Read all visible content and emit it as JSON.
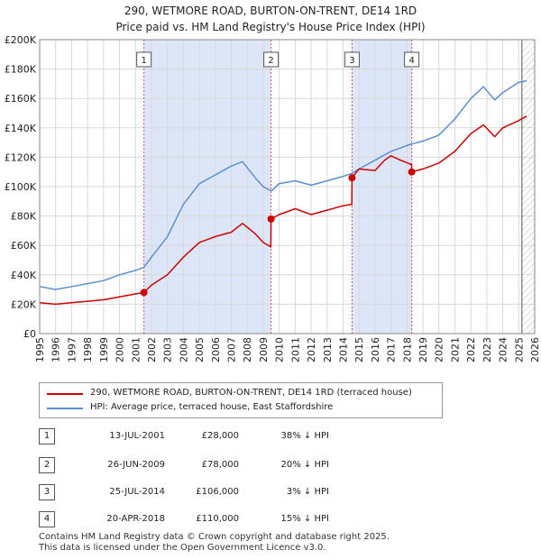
{
  "chart_data": {
    "type": "line",
    "title": "290, WETMORE ROAD, BURTON-ON-TRENT, DE14 1RD",
    "subtitle": "Price paid vs. HM Land Registry's House Price Index (HPI)",
    "xlim": [
      1995,
      2026
    ],
    "ylim": [
      0,
      200000
    ],
    "y_ticks": [
      0,
      20000,
      40000,
      60000,
      80000,
      100000,
      120000,
      140000,
      160000,
      180000,
      200000
    ],
    "y_tick_labels": [
      "£0",
      "£20K",
      "£40K",
      "£60K",
      "£80K",
      "£100K",
      "£120K",
      "£140K",
      "£160K",
      "£180K",
      "£200K"
    ],
    "x_ticks": [
      1995,
      1996,
      1997,
      1998,
      1999,
      2000,
      2001,
      2002,
      2003,
      2004,
      2005,
      2006,
      2007,
      2008,
      2009,
      2010,
      2011,
      2012,
      2013,
      2014,
      2015,
      2016,
      2017,
      2018,
      2019,
      2020,
      2021,
      2022,
      2023,
      2024,
      2025,
      2026
    ],
    "grid": true,
    "shaded_periods": [
      [
        2001.53,
        2009.49
      ],
      [
        2014.56,
        2018.3
      ]
    ],
    "forecast_start": 2025.2,
    "colors": {
      "property": "#cc0000",
      "hpi": "#5b8fd0",
      "shade": "#dde6f8",
      "grid": "#d8d8d8",
      "vline": "#e05050"
    },
    "series": [
      {
        "name": "290, WETMORE ROAD, BURTON-ON-TRENT, DE14 1RD (terraced house)",
        "color": "#cc0000",
        "x": [
          1995.0,
          1996.0,
          1997.0,
          1998.0,
          1999.0,
          2000.0,
          2001.0,
          2001.53,
          2002.0,
          2003.0,
          2004.0,
          2005.0,
          2006.0,
          2007.0,
          2007.7,
          2008.5,
          2009.0,
          2009.48,
          2009.49,
          2010.0,
          2011.0,
          2012.0,
          2013.0,
          2014.0,
          2014.55,
          2014.56,
          2015.0,
          2016.0,
          2016.6,
          2017.0,
          2017.6,
          2018.29,
          2018.3,
          2019.0,
          2020.0,
          2021.0,
          2022.0,
          2022.8,
          2023.5,
          2024.0,
          2025.0,
          2025.5
        ],
        "values": [
          21000,
          20000,
          21000,
          22000,
          23000,
          25000,
          27000,
          28000,
          33000,
          40000,
          52000,
          62000,
          66000,
          69000,
          75000,
          68000,
          62000,
          59000,
          78000,
          81000,
          85000,
          81000,
          84000,
          87000,
          88000,
          106000,
          112000,
          111000,
          118000,
          121000,
          118000,
          115000,
          110000,
          112000,
          116000,
          124000,
          136000,
          142000,
          134000,
          140000,
          145000,
          148000
        ]
      },
      {
        "name": "HPI: Average price, terraced house, East Staffordshire",
        "color": "#5b8fd0",
        "x": [
          1995.0,
          1996.0,
          1997.0,
          1998.0,
          1999.0,
          2000.0,
          2001.0,
          2001.53,
          2002.0,
          2003.0,
          2004.0,
          2005.0,
          2006.0,
          2007.0,
          2007.7,
          2008.5,
          2009.0,
          2009.5,
          2010.0,
          2011.0,
          2012.0,
          2013.0,
          2014.0,
          2014.56,
          2015.0,
          2016.0,
          2017.0,
          2018.0,
          2018.3,
          2019.0,
          2020.0,
          2021.0,
          2022.0,
          2022.8,
          2023.5,
          2024.0,
          2025.0,
          2025.5
        ],
        "values": [
          32000,
          30000,
          32000,
          34000,
          36000,
          40000,
          43000,
          45000,
          52000,
          66000,
          88000,
          102000,
          108000,
          114000,
          117000,
          106000,
          100000,
          97000,
          102000,
          104000,
          101000,
          104000,
          107000,
          109000,
          112000,
          118000,
          124000,
          128000,
          129000,
          131000,
          135000,
          146000,
          160000,
          168000,
          159000,
          164000,
          171000,
          172000
        ]
      }
    ],
    "markers": [
      {
        "label": "1",
        "x": 2001.53,
        "y": 28000
      },
      {
        "label": "2",
        "x": 2009.49,
        "y": 78000
      },
      {
        "label": "3",
        "x": 2014.56,
        "y": 106000
      },
      {
        "label": "4",
        "x": 2018.3,
        "y": 110000
      }
    ]
  },
  "legend": {
    "property_label": "290, WETMORE ROAD, BURTON-ON-TRENT, DE14 1RD (terraced house)",
    "hpi_label": "HPI: Average price, terraced house, East Staffordshire"
  },
  "transactions": [
    {
      "num": "1",
      "date": "13-JUL-2001",
      "price": "£28,000",
      "hpi": "38% ↓ HPI"
    },
    {
      "num": "2",
      "date": "26-JUN-2009",
      "price": "£78,000",
      "hpi": "20% ↓ HPI"
    },
    {
      "num": "3",
      "date": "25-JUL-2014",
      "price": "£106,000",
      "hpi": "3% ↓ HPI"
    },
    {
      "num": "4",
      "date": "20-APR-2018",
      "price": "£110,000",
      "hpi": "15% ↓ HPI"
    }
  ],
  "footer": {
    "line1": "Contains HM Land Registry data © Crown copyright and database right 2025.",
    "line2": "This data is licensed under the Open Government Licence v3.0."
  }
}
